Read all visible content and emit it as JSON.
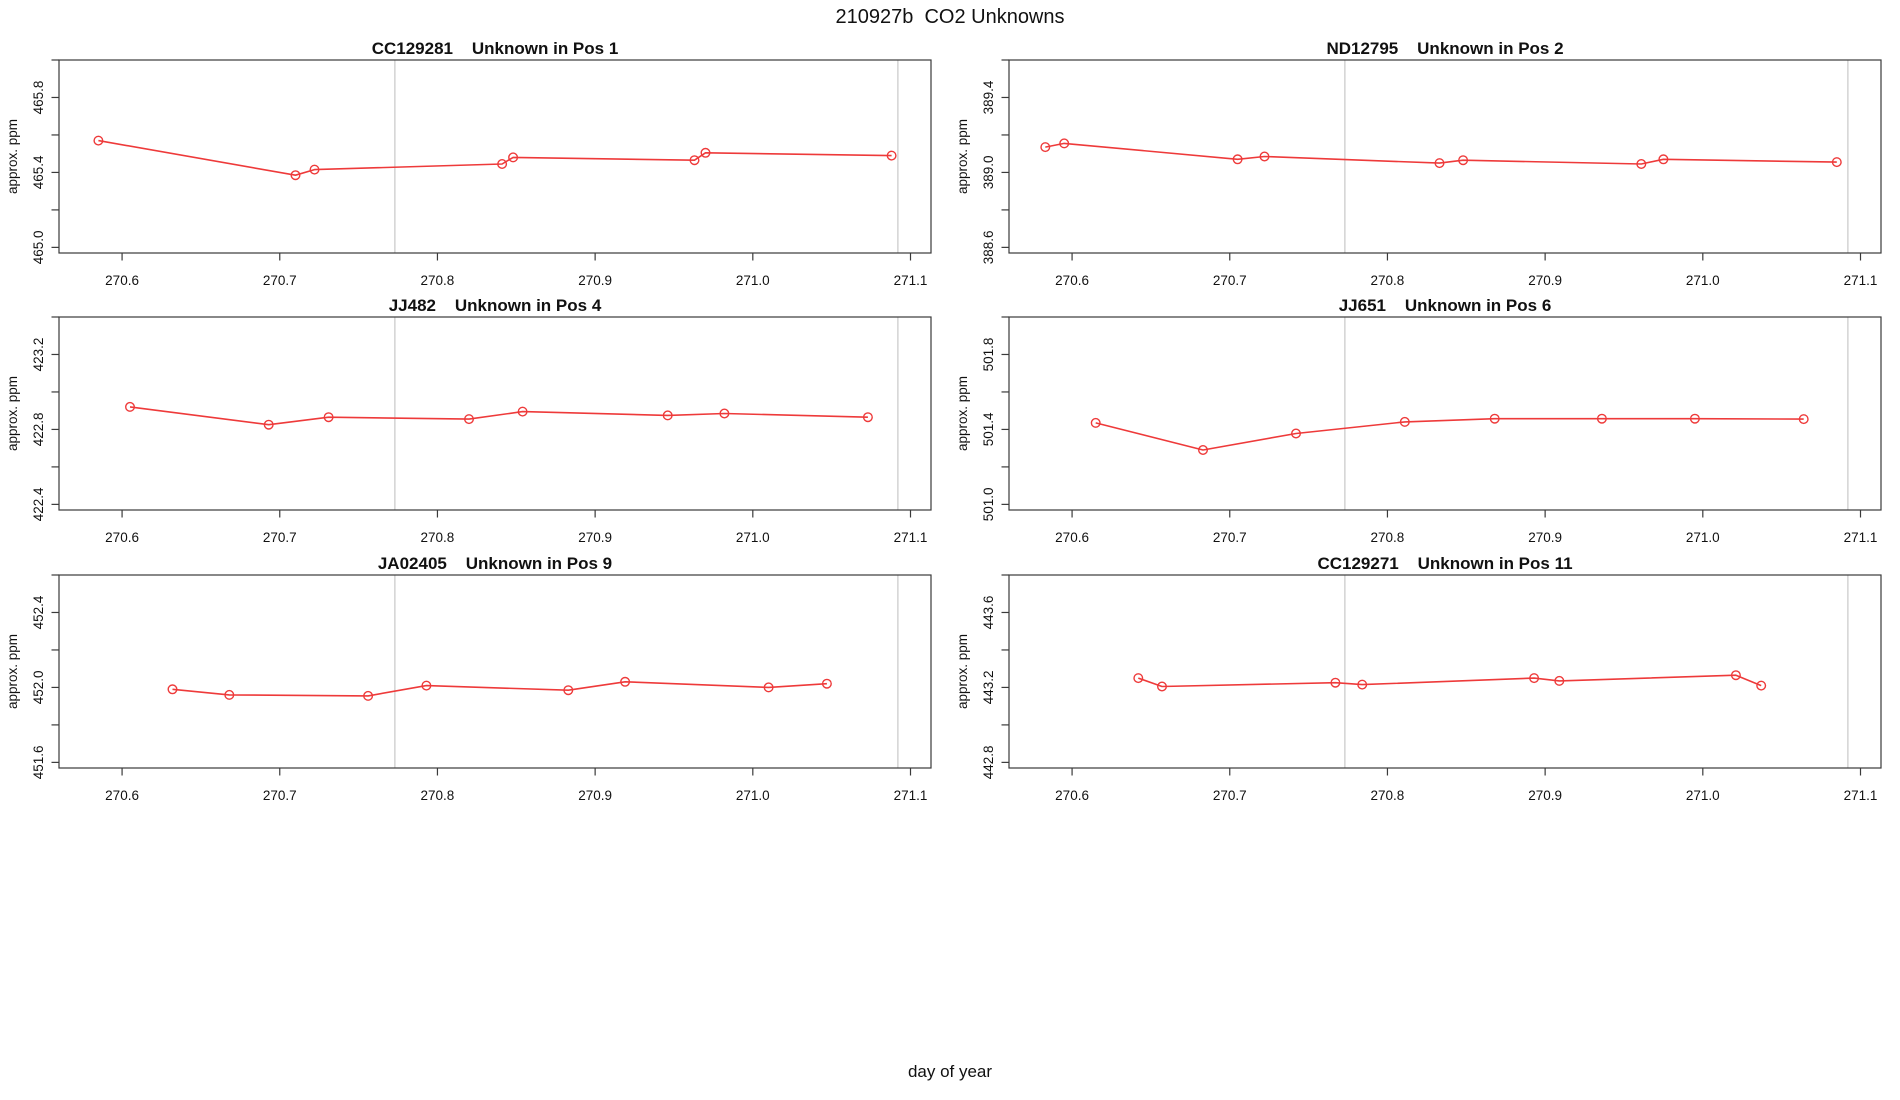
{
  "title": "210927b  CO2 Unknowns",
  "xlabel": "day of year",
  "ylabel": "approx. ppm",
  "colors": {
    "series": "#ee3a3a",
    "reference_line": "#cccccc",
    "axis": "#3a3a3a",
    "background": "#ffffff"
  },
  "chart_data": [
    {
      "type": "line",
      "title": "CC129281    Unknown in Pos 1",
      "sample_id": "CC129281",
      "position": "Pos 1",
      "ylabel": "approx. ppm",
      "marker": "open-circle",
      "legend": "none",
      "grid": "vertical-reference-lines-only",
      "xlim": [
        270.56,
        271.113
      ],
      "ylim": [
        464.97,
        466.0
      ],
      "xticks": [
        "270.6",
        "270.7",
        "270.8",
        "270.9",
        "271.0",
        "271.1"
      ],
      "yticks": [
        465.0,
        465.2,
        465.4,
        465.6,
        465.8,
        466.0
      ],
      "ytick_labels": [
        "465.0",
        "",
        "465.4",
        "",
        "465.8",
        ""
      ],
      "vlines": [
        270.773,
        271.092
      ],
      "x": [
        270.585,
        270.71,
        270.722,
        270.841,
        270.848,
        270.963,
        270.97,
        271.088
      ],
      "y": [
        465.57,
        465.385,
        465.415,
        465.445,
        465.48,
        465.465,
        465.505,
        465.49
      ]
    },
    {
      "type": "line",
      "title": "ND12795    Unknown in Pos 2",
      "sample_id": "ND12795",
      "position": "Pos 2",
      "ylabel": "approx. ppm",
      "marker": "open-circle",
      "legend": "none",
      "grid": "vertical-reference-lines-only",
      "xlim": [
        270.56,
        271.113
      ],
      "ylim": [
        388.57,
        389.6
      ],
      "xticks": [
        "270.6",
        "270.7",
        "270.8",
        "270.9",
        "271.0",
        "271.1"
      ],
      "yticks": [
        388.6,
        388.8,
        389.0,
        389.2,
        389.4,
        389.6
      ],
      "ytick_labels": [
        "388.6",
        "",
        "389.0",
        "",
        "389.4",
        ""
      ],
      "vlines": [
        270.773,
        271.092
      ],
      "x": [
        270.583,
        270.595,
        270.705,
        270.722,
        270.833,
        270.848,
        270.961,
        270.975,
        271.085
      ],
      "y": [
        389.135,
        389.155,
        389.07,
        389.085,
        389.05,
        389.065,
        389.045,
        389.07,
        389.055
      ]
    },
    {
      "type": "line",
      "title": "JJ482    Unknown in Pos 4",
      "sample_id": "JJ482",
      "position": "Pos 4",
      "ylabel": "approx. ppm",
      "marker": "open-circle",
      "legend": "none",
      "grid": "vertical-reference-lines-only",
      "xlim": [
        270.56,
        271.113
      ],
      "ylim": [
        422.37,
        423.4
      ],
      "xticks": [
        "270.6",
        "270.7",
        "270.8",
        "270.9",
        "271.0",
        "271.1"
      ],
      "yticks": [
        422.4,
        422.6,
        422.8,
        423.0,
        423.2,
        423.4
      ],
      "ytick_labels": [
        "422.4",
        "",
        "422.8",
        "",
        "423.2",
        ""
      ],
      "vlines": [
        270.773,
        271.092
      ],
      "x": [
        270.605,
        270.693,
        270.731,
        270.82,
        270.854,
        270.946,
        270.982,
        271.073
      ],
      "y": [
        422.92,
        422.825,
        422.865,
        422.855,
        422.895,
        422.875,
        422.885,
        422.865
      ]
    },
    {
      "type": "line",
      "title": "JJ651    Unknown in Pos 6",
      "sample_id": "JJ651",
      "position": "Pos 6",
      "ylabel": "approx. ppm",
      "marker": "open-circle",
      "legend": "none",
      "grid": "vertical-reference-lines-only",
      "xlim": [
        270.56,
        271.113
      ],
      "ylim": [
        500.97,
        502.0
      ],
      "xticks": [
        "270.6",
        "270.7",
        "270.8",
        "270.9",
        "271.0",
        "271.1"
      ],
      "yticks": [
        501.0,
        501.2,
        501.4,
        501.6,
        501.8,
        502.0
      ],
      "ytick_labels": [
        "501.0",
        "",
        "501.4",
        "",
        "501.8",
        ""
      ],
      "vlines": [
        270.773,
        271.092
      ],
      "x": [
        270.615,
        270.683,
        270.742,
        270.811,
        270.868,
        270.936,
        270.995,
        271.064
      ],
      "y": [
        501.435,
        501.29,
        501.378,
        501.44,
        501.457,
        501.457,
        501.457,
        501.455
      ]
    },
    {
      "type": "line",
      "title": "JA02405    Unknown in Pos 9",
      "sample_id": "JA02405",
      "position": "Pos 9",
      "ylabel": "approx. ppm",
      "marker": "open-circle",
      "legend": "none",
      "grid": "vertical-reference-lines-only",
      "xlim": [
        270.56,
        271.113
      ],
      "ylim": [
        451.57,
        452.6
      ],
      "xticks": [
        "270.6",
        "270.7",
        "270.8",
        "270.9",
        "271.0",
        "271.1"
      ],
      "yticks": [
        451.6,
        451.8,
        452.0,
        452.2,
        452.4,
        452.6
      ],
      "ytick_labels": [
        "451.6",
        "",
        "452.0",
        "",
        "452.4",
        ""
      ],
      "vlines": [
        270.773,
        271.092
      ],
      "x": [
        270.632,
        270.668,
        270.756,
        270.793,
        270.883,
        270.919,
        271.01,
        271.047
      ],
      "y": [
        451.99,
        451.96,
        451.955,
        452.01,
        451.985,
        452.03,
        452.0,
        452.02
      ]
    },
    {
      "type": "line",
      "title": "CC129271    Unknown in Pos 11",
      "sample_id": "CC129271",
      "position": "Pos 11",
      "ylabel": "approx. ppm",
      "marker": "open-circle",
      "legend": "none",
      "grid": "vertical-reference-lines-only",
      "xlim": [
        270.56,
        271.113
      ],
      "ylim": [
        442.77,
        443.8
      ],
      "xticks": [
        "270.6",
        "270.7",
        "270.8",
        "270.9",
        "271.0",
        "271.1"
      ],
      "yticks": [
        442.8,
        443.0,
        443.2,
        443.4,
        443.6,
        443.8
      ],
      "ytick_labels": [
        "442.8",
        "",
        "443.2",
        "",
        "443.6",
        ""
      ],
      "vlines": [
        270.773,
        271.092
      ],
      "x": [
        270.642,
        270.657,
        270.767,
        270.784,
        270.893,
        270.909,
        271.021,
        271.037
      ],
      "y": [
        443.25,
        443.205,
        443.225,
        443.215,
        443.25,
        443.235,
        443.265,
        443.21
      ]
    }
  ]
}
